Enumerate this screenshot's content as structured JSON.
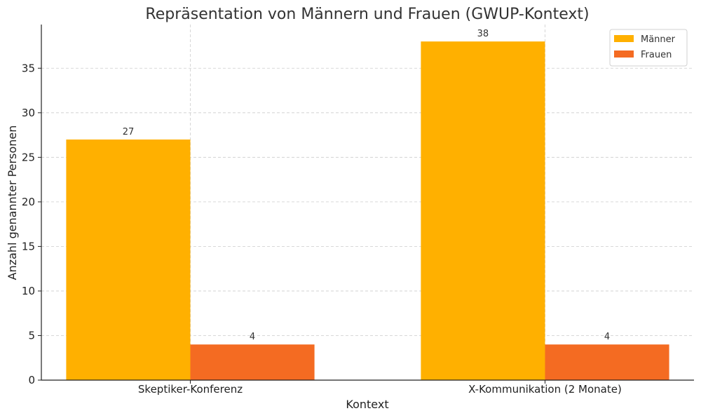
{
  "chart_data": {
    "type": "bar",
    "title": "Repräsentation von Männern und Frauen (GWUP-Kontext)",
    "xlabel": "Kontext",
    "ylabel": "Anzahl genannter Personen",
    "categories": [
      "Skeptiker-Konferenz",
      "X-Kommunikation (2 Monate)"
    ],
    "series": [
      {
        "name": "Männer",
        "values": [
          27,
          38
        ],
        "color": "#ffb000"
      },
      {
        "name": "Frauen",
        "values": [
          4,
          4
        ],
        "color": "#f46b22"
      }
    ],
    "ylim": [
      0,
      39.9
    ],
    "yticks": [
      0,
      5,
      10,
      15,
      20,
      25,
      30,
      35
    ],
    "grid": true,
    "legend_position": "top-right",
    "data_labels": true
  }
}
